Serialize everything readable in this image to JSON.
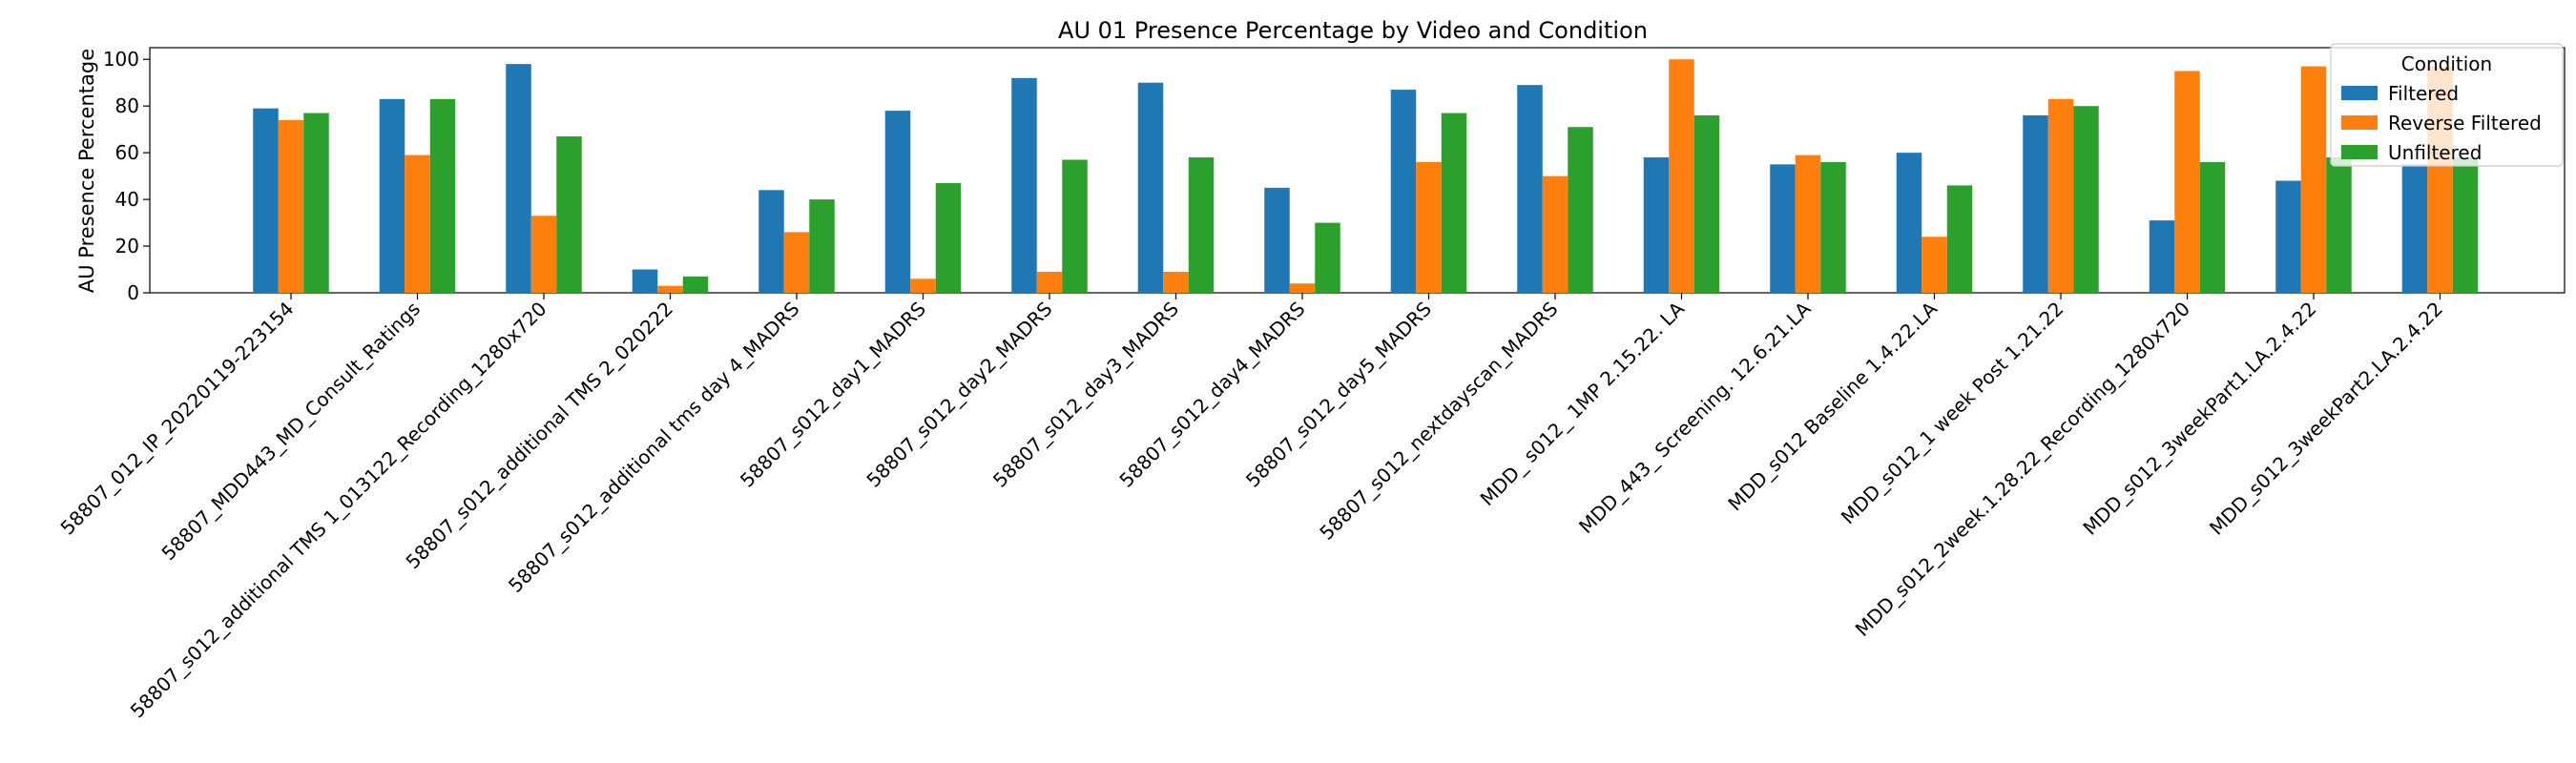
{
  "chart_data": {
    "type": "bar",
    "title": "AU 01 Presence Percentage by Video and Condition",
    "xlabel": "",
    "ylabel": "AU Presence Percentage",
    "ylim": [
      0,
      105
    ],
    "yticks": [
      0,
      20,
      40,
      60,
      80,
      100
    ],
    "grid": false,
    "legend": {
      "title": "Condition",
      "placement": "top-right"
    },
    "categories": [
      "58807_012_IP_20220119-223154",
      "58807_MDD443_MD_Consult_Ratings",
      "58807_s012_additional TMS 1_013122_Recording_1280x720",
      "58807_s012_additional TMS 2_020222",
      "58807_s012_additional tms day 4_MADRS",
      "58807_s012_day1_MADRS",
      "58807_s012_day2_MADRS",
      "58807_s012_day3_MADRS",
      "58807_s012_day4_MADRS",
      "58807_s012_day5_MADRS",
      "58807_s012_nextdayscan_MADRS",
      "MDD_ s012_ 1MP  2.15.22. LA",
      "MDD_443_ Screening. 12.6.21.LA",
      "MDD_s012 Baseline 1.4.22.LA",
      "MDD_s012_1 week Post 1.21.22",
      "MDD_s012_2week.1.28.22_Recording_1280x720",
      "MDD_s012_3weekPart1.LA.2.4.22",
      "MDD_s012_3weekPart2.LA.2.4.22"
    ],
    "series": [
      {
        "name": "Filtered",
        "color": "#1f77b4",
        "values": [
          79,
          83,
          98,
          10,
          44,
          78,
          92,
          90,
          45,
          87,
          89,
          58,
          55,
          60,
          76,
          31,
          48,
          55
        ]
      },
      {
        "name": "Reverse Filtered",
        "color": "#ff7f0e",
        "values": [
          74,
          59,
          33,
          3,
          26,
          6,
          9,
          9,
          4,
          56,
          50,
          100,
          59,
          24,
          83,
          95,
          97,
          97
        ]
      },
      {
        "name": "Unfiltered",
        "color": "#2ca02c",
        "values": [
          77,
          83,
          67,
          7,
          40,
          47,
          57,
          58,
          30,
          77,
          71,
          76,
          56,
          46,
          80,
          56,
          58,
          58
        ]
      }
    ]
  }
}
